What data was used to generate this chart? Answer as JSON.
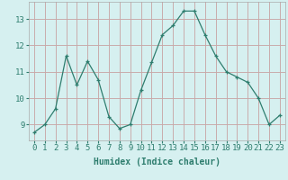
{
  "x": [
    0,
    1,
    2,
    3,
    4,
    5,
    6,
    7,
    8,
    9,
    10,
    11,
    12,
    13,
    14,
    15,
    16,
    17,
    18,
    19,
    20,
    21,
    22,
    23
  ],
  "y": [
    8.7,
    9.0,
    9.6,
    11.6,
    10.5,
    11.4,
    10.7,
    9.3,
    8.85,
    9.0,
    10.3,
    11.35,
    12.4,
    12.75,
    13.3,
    13.3,
    12.4,
    11.6,
    11.0,
    10.8,
    10.6,
    10.0,
    9.0,
    9.35
  ],
  "line_color": "#2e7d6e",
  "marker": "+",
  "marker_size": 3,
  "bg_color": "#d6f0f0",
  "grid_color_major": "#c9a8a8",
  "grid_color_minor": "#c9a8a8",
  "xlabel": "Humidex (Indice chaleur)",
  "xlabel_fontsize": 7,
  "xtick_labels": [
    "0",
    "1",
    "2",
    "3",
    "4",
    "5",
    "6",
    "7",
    "8",
    "9",
    "10",
    "11",
    "12",
    "13",
    "14",
    "15",
    "16",
    "17",
    "18",
    "19",
    "20",
    "21",
    "22",
    "23"
  ],
  "ytick_values": [
    9,
    10,
    11,
    12,
    13
  ],
  "ylim": [
    8.4,
    13.65
  ],
  "xlim": [
    -0.5,
    23.5
  ],
  "tick_fontsize": 6.5
}
